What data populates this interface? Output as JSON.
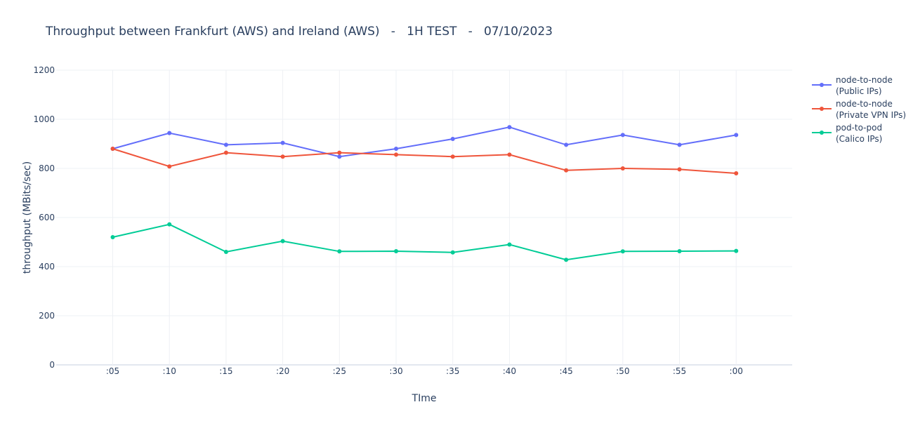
{
  "chart_data": {
    "type": "line",
    "title": "Throughput between Frankfurt (AWS) and Ireland (AWS)   -   1H TEST   -   07/10/2023",
    "xlabel": "TIme",
    "ylabel": "throughput (MBits/sec)",
    "categories": [
      ":05",
      ":10",
      ":15",
      ":20",
      ":25",
      ":30",
      ":35",
      ":40",
      ":45",
      ":50",
      ":55",
      ":00"
    ],
    "ylim": [
      0,
      1200
    ],
    "yticks": [
      0,
      200,
      400,
      600,
      800,
      1000,
      1200
    ],
    "grid": true,
    "legend_position": "top-right",
    "series": [
      {
        "name": "node-to-node (Public IPs)",
        "legend_lines": [
          "node-to-node",
          "(Public IPs)"
        ],
        "color": "#636efa",
        "values": [
          880,
          944,
          896,
          904,
          848,
          880,
          920,
          968,
          896,
          936,
          896,
          936
        ]
      },
      {
        "name": "node-to-node (Private VPN IPs)",
        "legend_lines": [
          "node-to-node",
          "(Private VPN IPs)"
        ],
        "color": "#ef553b",
        "values": [
          880,
          808,
          864,
          848,
          864,
          856,
          848,
          856,
          792,
          800,
          796,
          780
        ]
      },
      {
        "name": "pod-to-pod (Calico IPs)",
        "legend_lines": [
          "pod-to-pod",
          "(Calico IPs)"
        ],
        "color": "#00cc96",
        "values": [
          520,
          572,
          460,
          504,
          462,
          463,
          458,
          490,
          428,
          462,
          463,
          464
        ]
      }
    ]
  }
}
